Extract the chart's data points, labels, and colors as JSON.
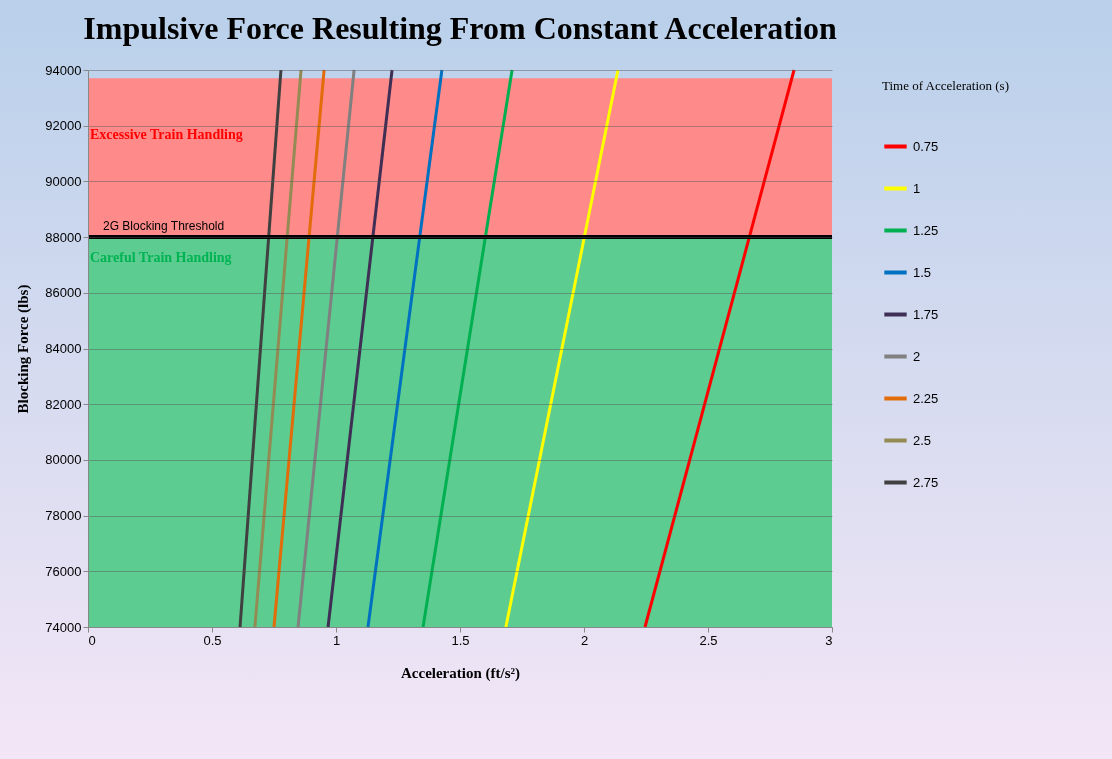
{
  "chart_data": {
    "type": "line",
    "title": "Impulsive Force Resulting From Constant Acceleration",
    "xlabel": "Acceleration (ft/s²)",
    "ylabel": "Blocking Force (lbs)",
    "legend_title": "Time of Acceleration (s)",
    "xlim": [
      0,
      3
    ],
    "xticks": [
      0,
      0.5,
      1,
      1.5,
      2,
      2.5,
      3
    ],
    "ylim": [
      74000,
      94000
    ],
    "yticks": [
      74000,
      76000,
      78000,
      80000,
      82000,
      84000,
      86000,
      88000,
      90000,
      92000,
      94000
    ],
    "grid": "y",
    "legend": "right",
    "marker": "none",
    "line_style": "solid",
    "series": [
      {
        "name": "0.75",
        "color": "#ff0000",
        "x": [
          2.246,
          2.847
        ],
        "values": [
          74000,
          94000
        ]
      },
      {
        "name": "1",
        "color": "#ffff00",
        "x": [
          1.685,
          2.137
        ],
        "values": [
          74000,
          94000
        ]
      },
      {
        "name": "1.25",
        "color": "#00b050",
        "x": [
          1.351,
          1.71
        ],
        "values": [
          74000,
          94000
        ]
      },
      {
        "name": "1.5",
        "color": "#0070c0",
        "x": [
          1.129,
          1.427
        ],
        "values": [
          74000,
          94000
        ]
      },
      {
        "name": "1.75",
        "color": "#3f2f55",
        "x": [
          0.968,
          1.226
        ],
        "values": [
          74000,
          94000
        ]
      },
      {
        "name": "2",
        "color": "#808080",
        "x": [
          0.847,
          1.073
        ],
        "values": [
          74000,
          94000
        ]
      },
      {
        "name": "2.25",
        "color": "#e36c0a",
        "x": [
          0.75,
          0.952
        ],
        "values": [
          74000,
          94000
        ]
      },
      {
        "name": "2.5",
        "color": "#948a54",
        "x": [
          0.673,
          0.859
        ],
        "values": [
          74000,
          94000
        ]
      },
      {
        "name": "2.75",
        "color": "#404040",
        "x": [
          0.613,
          0.778
        ],
        "values": [
          74000,
          94000
        ]
      }
    ],
    "bands": [
      {
        "axis": "y",
        "from": 88000,
        "to": 93700,
        "label": "Excessive Train Handling",
        "color": "#ff8a8a"
      },
      {
        "axis": "y",
        "from": 74000,
        "to": 88000,
        "label": "Careful Train Handling",
        "color": "#5ccc90"
      }
    ],
    "ref_lines": [
      {
        "axis": "y",
        "value": 88000,
        "label": "2G Blocking Threshold",
        "color": "#000000"
      }
    ]
  }
}
